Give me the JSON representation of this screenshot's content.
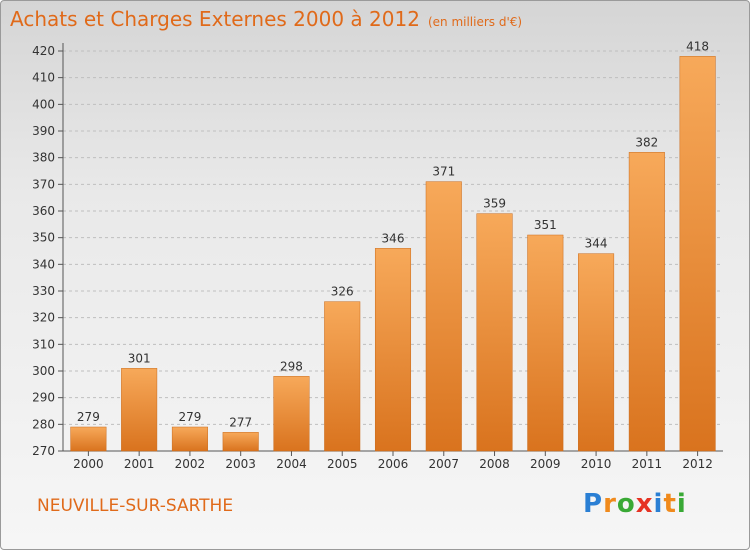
{
  "header": {
    "title": "Achats et Charges Externes 2000 à 2012",
    "subtitle": "(en milliers d'€)"
  },
  "footer": {
    "location": "NEUVILLE-SUR-SARTHE",
    "brand": "Proxiti",
    "brand_letters": [
      "P",
      "r",
      "o",
      "x",
      "i",
      "t",
      "i"
    ],
    "brand_colors": [
      "#2a7fd4",
      "#f08a1c",
      "#39a935",
      "#e63323",
      "#2a7fd4",
      "#f08a1c",
      "#39a935"
    ]
  },
  "colors": {
    "accent": "#e06a1a",
    "bar_top": "#f7a95a",
    "bar_bottom": "#d9731e",
    "grid": "#bfbfbf"
  },
  "chart_data": {
    "type": "bar",
    "categories": [
      "2000",
      "2001",
      "2002",
      "2003",
      "2004",
      "2005",
      "2006",
      "2007",
      "2008",
      "2009",
      "2010",
      "2011",
      "2012"
    ],
    "values": [
      279,
      301,
      279,
      277,
      298,
      326,
      346,
      371,
      359,
      351,
      344,
      382,
      418
    ],
    "ylim": [
      270,
      420
    ],
    "yticks": [
      270,
      280,
      290,
      300,
      310,
      320,
      330,
      340,
      350,
      360,
      370,
      380,
      390,
      400,
      410,
      420
    ],
    "grid": true,
    "data_labels": true
  }
}
